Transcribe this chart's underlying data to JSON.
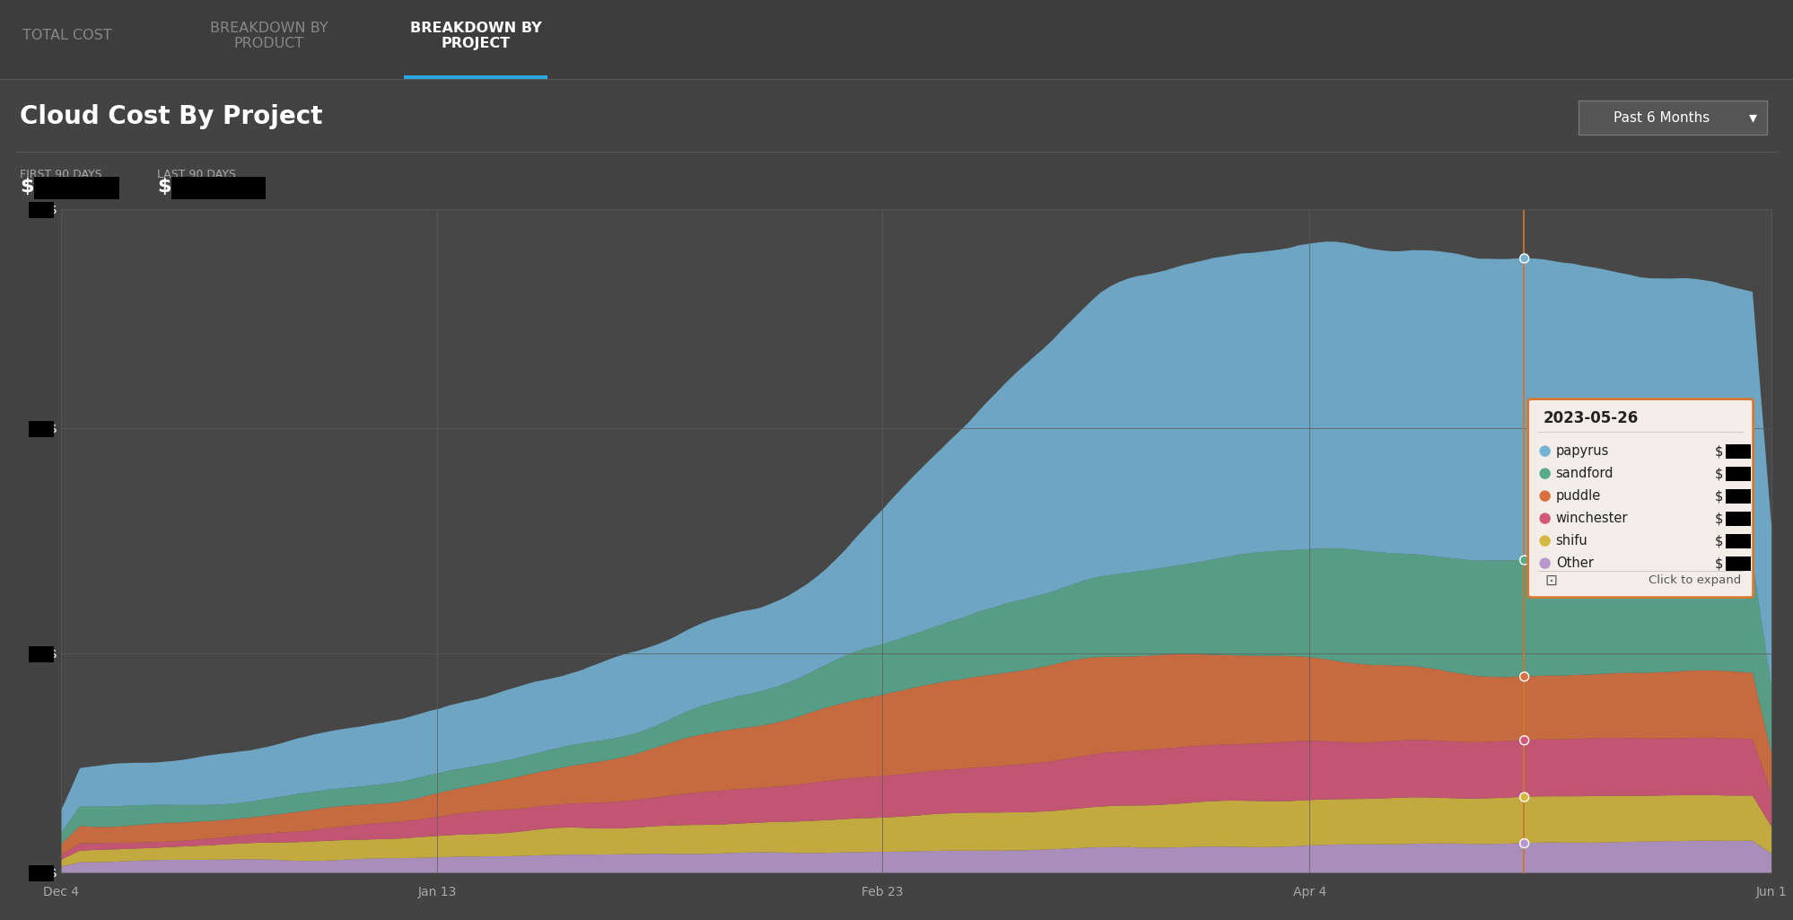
{
  "title": "Cloud Cost By Project",
  "tab_labels": [
    "TOTAL COST",
    "BREAKDOWN BY\nPRODUCT",
    "BREAKDOWN BY\nPROJECT"
  ],
  "active_tab": 2,
  "first_90_label": "FIRST 90 DAYS",
  "last_90_label": "LAST 90 DAYS",
  "dropdown_label": "Past 6 Months",
  "bg_color": "#434343",
  "active_tab_color": "#29a8e0",
  "x_labels": [
    "Dec 4",
    "Jan 13",
    "Feb 23",
    "Apr 4",
    "Jun 1"
  ],
  "tooltip_date": "2023-05-26",
  "tooltip_items": [
    "papyrus",
    "sandford",
    "puddle",
    "winchester",
    "shifu",
    "Other"
  ],
  "tooltip_dot_colors": [
    "#74b3d4",
    "#5aaa8e",
    "#d97040",
    "#d45878",
    "#d4b840",
    "#b898cc"
  ],
  "series_names": [
    "Other",
    "shifu",
    "winchester",
    "puddle",
    "sandford",
    "papyrus"
  ],
  "series_colors": [
    "#b898cc",
    "#d4b840",
    "#d45878",
    "#d97040",
    "#5aaa8e",
    "#74b3d4"
  ],
  "tab_bg": "#3d3d3d",
  "content_bg": "#454545"
}
